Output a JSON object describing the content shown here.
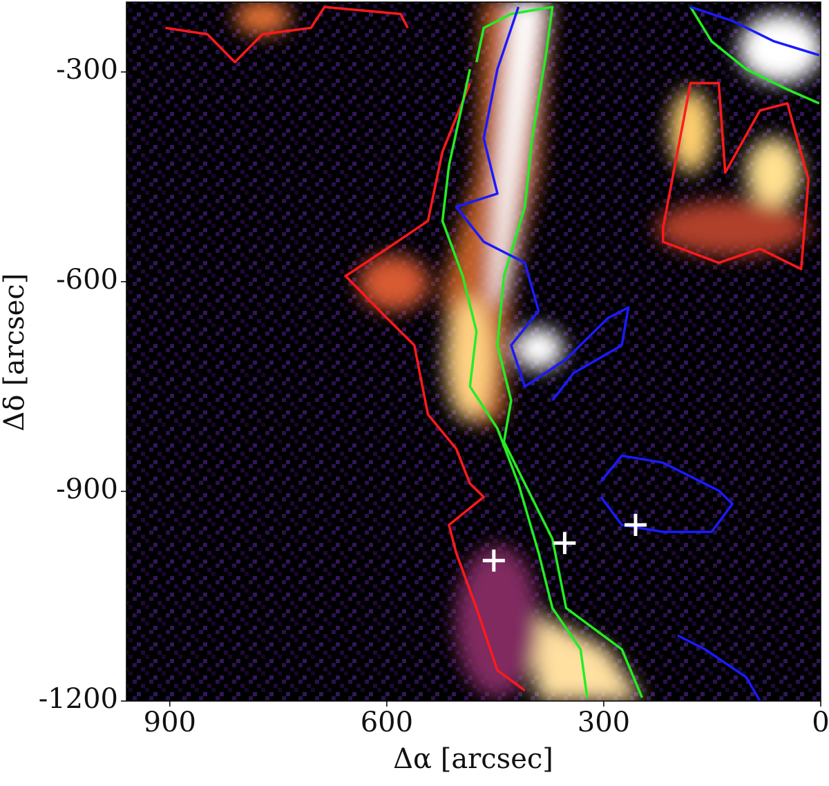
{
  "chart_data": {
    "type": "contour",
    "x_label": "Δα [arcsec]",
    "y_label": "Δδ [arcsec]",
    "xlim": [
      960,
      0
    ],
    "ylim": [
      -1200,
      -200
    ],
    "xticks": [
      900,
      600,
      300,
      0
    ],
    "yticks": [
      -300,
      -600,
      -900,
      -1200
    ],
    "series": [
      {
        "color": "#ff1a1a",
        "x": [
          906,
          848,
          810,
          772,
          705,
          686,
          581,
          571
        ],
        "y": [
          -237,
          -246,
          -286,
          -246,
          -237,
          -207,
          -217,
          -237
        ]
      },
      {
        "color": "#ff1a1a",
        "x": [
          485,
          523,
          543,
          600,
          657,
          600,
          562,
          543,
          504,
          485,
          466,
          514,
          504,
          476,
          447,
          409
        ],
        "y": [
          -316,
          -414,
          -513,
          -553,
          -592,
          -652,
          -691,
          -790,
          -839,
          -889,
          -908,
          -948,
          -988,
          -1067,
          -1156,
          -1185
        ]
      },
      {
        "color": "#ff1a1a",
        "x": [
          218,
          180,
          141,
          132,
          84,
          46,
          17,
          27,
          84,
          141,
          218,
          218
        ],
        "y": [
          -523,
          -316,
          -316,
          -444,
          -355,
          -345,
          -454,
          -582,
          -553,
          -573,
          -543,
          -523
        ]
      },
      {
        "color": "#22ee22",
        "x": [
          476,
          466,
          428,
          371,
          380,
          399,
          409,
          438,
          447,
          428,
          438,
          409,
          371,
          352,
          275,
          247
        ],
        "y": [
          -286,
          -237,
          -217,
          -207,
          -276,
          -395,
          -493,
          -592,
          -691,
          -770,
          -829,
          -889,
          -968,
          -1067,
          -1126,
          -1195
        ]
      },
      {
        "color": "#22ee22",
        "x": [
          485,
          514,
          523,
          495,
          476,
          485,
          447,
          418,
          390,
          371,
          332,
          323
        ],
        "y": [
          -296,
          -434,
          -513,
          -592,
          -671,
          -750,
          -810,
          -889,
          -988,
          -1067,
          -1126,
          -1195
        ]
      },
      {
        "color": "#22ee22",
        "x": [
          180,
          151,
          103,
          46,
          2
        ],
        "y": [
          -207,
          -256,
          -296,
          -325,
          -345
        ]
      },
      {
        "color": "#1a1aff",
        "x": [
          418,
          447,
          466,
          447,
          504,
          466,
          409,
          390,
          428,
          409,
          352,
          294,
          266,
          275,
          342,
          371
        ],
        "y": [
          -207,
          -296,
          -395,
          -474,
          -493,
          -543,
          -573,
          -642,
          -691,
          -750,
          -711,
          -652,
          -637,
          -691,
          -731,
          -770
        ]
      },
      {
        "color": "#1a1aff",
        "x": [
          304,
          275,
          218,
          141,
          122,
          151,
          218,
          275,
          304
        ],
        "y": [
          -886,
          -849,
          -859,
          -899,
          -918,
          -958,
          -958,
          -948,
          -908
        ]
      },
      {
        "color": "#1a1aff",
        "x": [
          180,
          122,
          65,
          2
        ],
        "y": [
          -207,
          -227,
          -256,
          -276
        ]
      },
      {
        "color": "#1a1aff",
        "x": [
          198,
          160,
          103,
          84
        ],
        "y": [
          -1106,
          -1126,
          -1166,
          -1200
        ]
      }
    ],
    "markers": {
      "color": "#ffffff",
      "x": [
        452,
        354,
        256
      ],
      "y": [
        -999,
        -974,
        -948
      ]
    }
  }
}
